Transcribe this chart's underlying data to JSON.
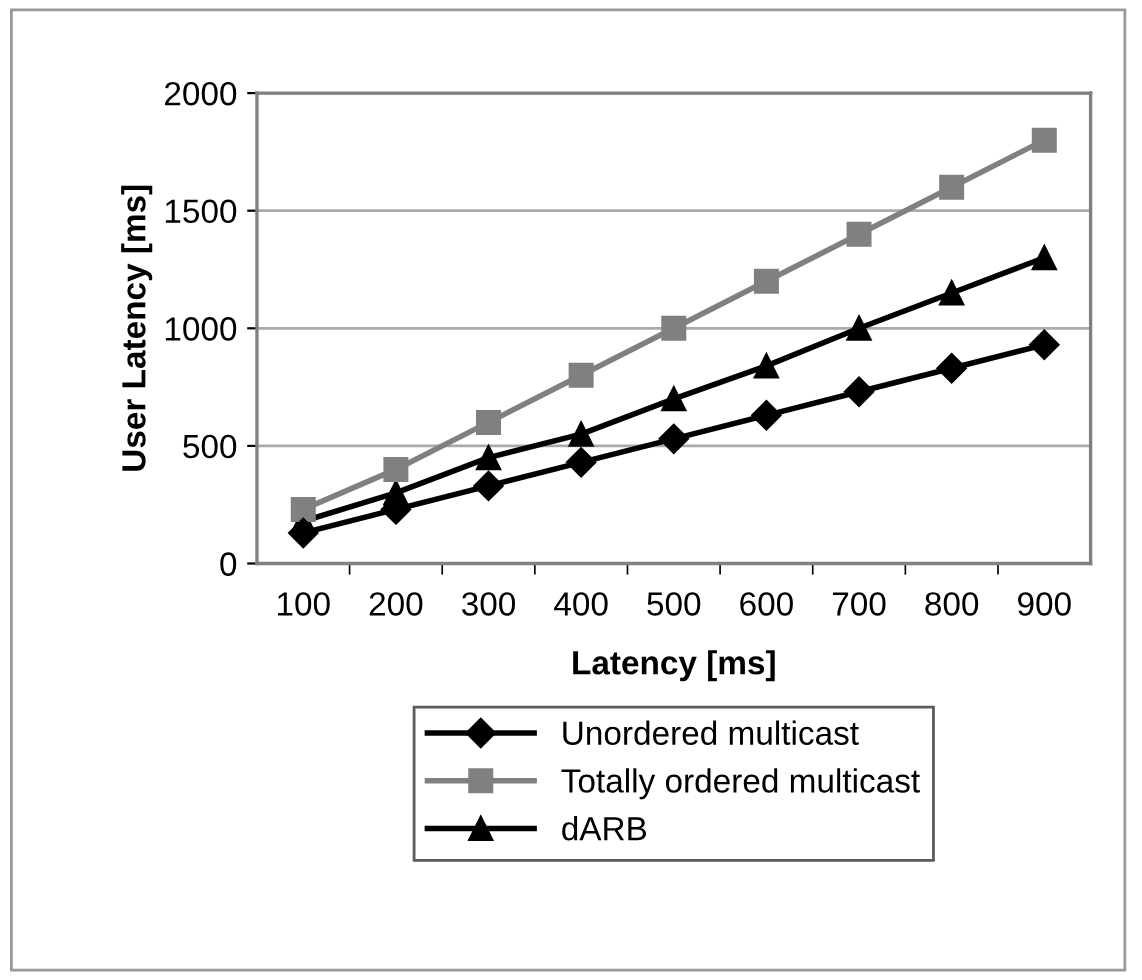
{
  "chart_data": {
    "type": "line",
    "xlabel": "Latency [ms]",
    "ylabel": "User Latency [ms]",
    "categories": [
      "100",
      "200",
      "300",
      "400",
      "500",
      "600",
      "700",
      "800",
      "900"
    ],
    "series": [
      {
        "name": "Unordered multicast",
        "color": "#000000",
        "marker": "diamond",
        "values": [
          130,
          230,
          330,
          430,
          530,
          630,
          730,
          830,
          930
        ]
      },
      {
        "name": "Totally ordered multicast",
        "color": "#808080",
        "marker": "square",
        "values": [
          230,
          400,
          600,
          800,
          1000,
          1200,
          1400,
          1600,
          1800
        ]
      },
      {
        "name": "dARB",
        "color": "#000000",
        "marker": "triangle",
        "values": [
          180,
          300,
          450,
          550,
          700,
          840,
          1000,
          1150,
          1300
        ]
      }
    ],
    "ylim": [
      0,
      2000
    ],
    "yticks": [
      0,
      500,
      1000,
      1500,
      2000
    ],
    "grid": "y",
    "legend": "bottom",
    "line_style": "solid"
  }
}
